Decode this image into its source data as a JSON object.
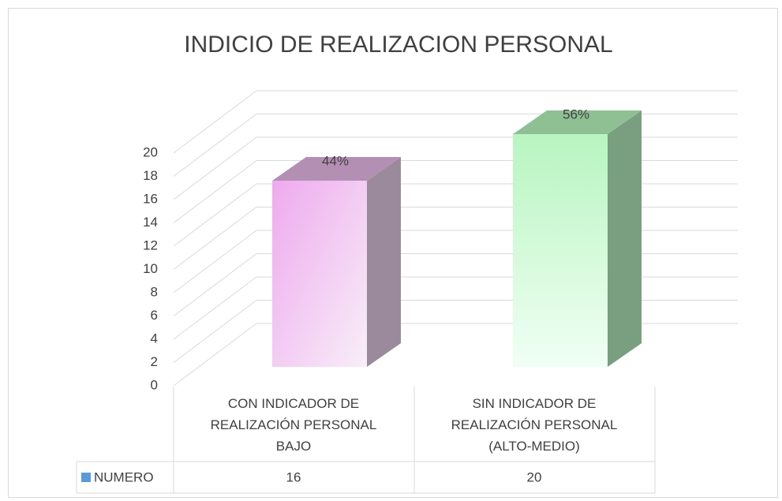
{
  "chart_data": {
    "type": "bar3d",
    "title": "INDICIO DE REALIZACION PERSONAL",
    "categories": [
      "CON INDICADOR DE REALIZACIÓN PERSONAL BAJO",
      "SIN INDICADOR DE REALIZACIÓN PERSONAL (ALTO-MEDIO)"
    ],
    "series": [
      {
        "name": "NUMERO",
        "color": "#5b9bd5",
        "values": [
          16,
          20
        ]
      }
    ],
    "bar_colors": [
      "#eeaaee",
      "#b8f5c0"
    ],
    "annotations": [
      "44%",
      "56%"
    ],
    "ylim": [
      0,
      20
    ],
    "yticks": [
      0,
      2,
      4,
      6,
      8,
      10,
      12,
      14,
      16,
      18,
      20
    ],
    "grid": true,
    "data_table": true
  }
}
